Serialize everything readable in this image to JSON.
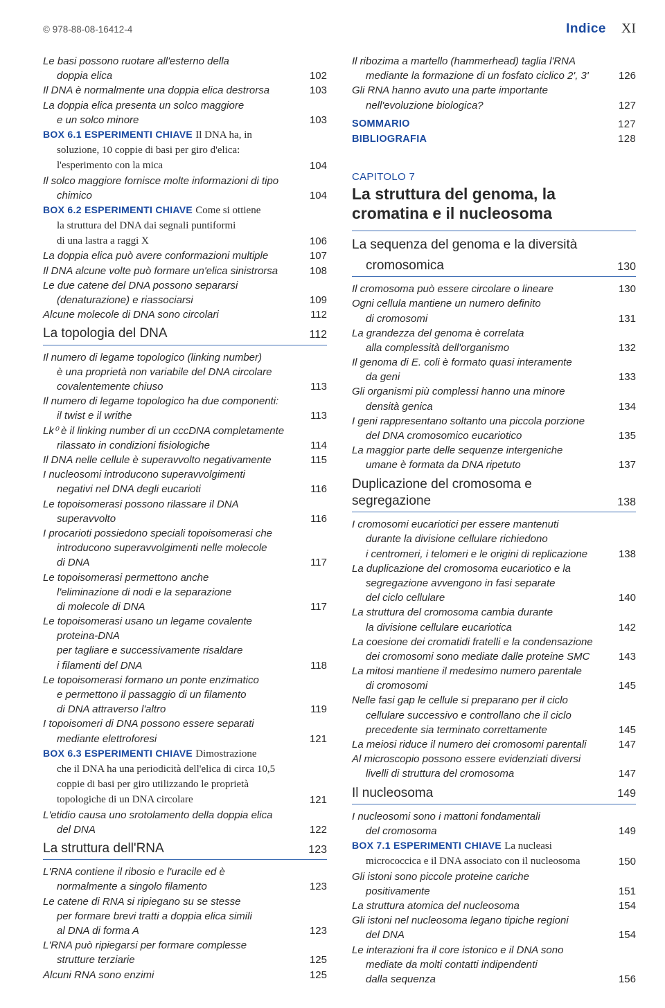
{
  "header": {
    "isbn": "© 978-88-08-16412-4",
    "label": "Indice",
    "pageRoman": "XI"
  },
  "left": {
    "preRows": [
      {
        "t": "Le basi possono ruotare all'esterno della",
        "cont": "doppia elica",
        "p": "102",
        "i": true
      },
      {
        "t": "Il DNA è normalmente una doppia elica destrorsa",
        "p": "103",
        "i": true
      },
      {
        "t": "La doppia elica presenta un solco maggiore",
        "cont": "e un solco minore",
        "p": "103",
        "i": true
      },
      {
        "box": true,
        "label": "BOX 6.1 ESPERIMENTI CHIAVE",
        "t": "Il DNA ha, in",
        "cont": "soluzione, 10 coppie di basi per giro d'elica:",
        "cont2": "l'esperimento con la mica",
        "p": "104"
      },
      {
        "t": "Il solco maggiore fornisce molte informazioni di tipo",
        "cont": "chimico",
        "p": "104",
        "i": true
      },
      {
        "box": true,
        "label": "BOX 6.2 ESPERIMENTI CHIAVE",
        "t": "Come si ottiene",
        "cont": "la struttura del DNA dai segnali puntiformi",
        "cont2": "di una lastra a raggi X",
        "p": "106"
      },
      {
        "t": "La doppia elica può avere conformazioni multiple",
        "p": "107",
        "i": true
      },
      {
        "t": "Il DNA alcune volte può formare un'elica sinistrorsa",
        "p": "108",
        "i": true
      },
      {
        "t": "Le due catene del DNA possono separarsi",
        "cont": "(denaturazione) e riassociarsi",
        "p": "109",
        "i": true
      },
      {
        "t": "Alcune molecole di DNA sono circolari",
        "p": "112",
        "i": true
      }
    ],
    "section1": {
      "title": "La topologia del DNA",
      "page": "112"
    },
    "rows1": [
      {
        "t": "Il numero di legame topologico (linking number)",
        "cont": "è una proprietà non variabile del DNA circolare",
        "cont2": "covalentemente chiuso",
        "p": "113",
        "i": true
      },
      {
        "t": "Il numero di legame topologico ha due componenti:",
        "cont": "il twist e il writhe",
        "p": "113",
        "i": true
      },
      {
        "t": "Lk⁰ è il linking number di un cccDNA completamente",
        "cont": "rilassato in condizioni fisiologiche",
        "p": "114",
        "i": true
      },
      {
        "t": "Il DNA nelle cellule è superavvolto negativamente",
        "p": "115",
        "i": true
      },
      {
        "t": "I nucleosomi introducono superavvolgimenti",
        "cont": "negativi nel DNA degli eucarioti",
        "p": "116",
        "i": true
      },
      {
        "t": "Le topoisomerasi possono rilassare il DNA",
        "cont": "superavvolto",
        "p": "116",
        "i": true
      },
      {
        "t": "I procarioti possiedono speciali topoisomerasi che",
        "cont": "introducono superavvolgimenti nelle molecole",
        "cont2": "di DNA",
        "p": "117",
        "i": true
      },
      {
        "t": "Le topoisomerasi permettono anche",
        "cont": "l'eliminazione di nodi e la separazione",
        "cont2": "di molecole di DNA",
        "p": "117",
        "i": true
      },
      {
        "t": "Le topoisomerasi usano un legame covalente",
        "cont": "proteina-DNA",
        "cont2": "per tagliare e successivamente risaldare",
        "cont3": "i filamenti del DNA",
        "p": "118",
        "i": true
      },
      {
        "t": "Le topoisomerasi formano un ponte enzimatico",
        "cont": "e permettono il passaggio di un filamento",
        "cont2": "di DNA attraverso l'altro",
        "p": "119",
        "i": true
      },
      {
        "t": "I topoisomeri di DNA possono essere separati",
        "cont": "mediante elettroforesi",
        "p": "121",
        "i": true
      },
      {
        "box": true,
        "label": "BOX 6.3 ESPERIMENTI CHIAVE",
        "t": "Dimostrazione",
        "cont": "che il DNA ha una periodicità dell'elica di circa 10,5",
        "cont2": "coppie di basi per giro utilizzando le proprietà",
        "cont3": "topologiche di un DNA circolare",
        "p": "121"
      },
      {
        "t": "L'etidio causa uno srotolamento della doppia elica",
        "cont": "del DNA",
        "p": "122",
        "i": true
      }
    ],
    "section2": {
      "title": "La struttura dell'RNA",
      "page": "123"
    },
    "rows2": [
      {
        "t": "L'RNA contiene il ribosio e l'uracile ed è",
        "cont": "normalmente a singolo filamento",
        "p": "123",
        "i": true
      },
      {
        "t": "Le catene di RNA si ripiegano su se stesse",
        "cont": "per formare brevi tratti a doppia elica simili",
        "cont2": "al DNA di forma A",
        "p": "123",
        "i": true
      },
      {
        "t": "L'RNA può ripiegarsi per formare complesse",
        "cont": "strutture terziarie",
        "p": "125",
        "i": true
      },
      {
        "t": "Alcuni RNA sono enzimi",
        "p": "125",
        "i": true
      }
    ]
  },
  "right": {
    "preRows": [
      {
        "t": "Il ribozima a martello (hammerhead) taglia l'RNA",
        "cont": "mediante la formazione di un fosfato ciclico 2', 3'",
        "p": "126",
        "i": true
      },
      {
        "t": "Gli RNA hanno avuto una parte importante",
        "cont": "nell'evoluzione biologica?",
        "p": "127",
        "i": true
      }
    ],
    "end": [
      {
        "t": "SOMMARIO",
        "p": "127"
      },
      {
        "t": "BIBLIOGRAFIA",
        "p": "128"
      }
    ],
    "chapter": {
      "label": "CAPITOLO 7",
      "title": "La struttura del genoma, la cromatina e il nucleosoma"
    },
    "section1": {
      "title": "La sequenza del genoma e la diversità",
      "titleCont": "cromosomica",
      "page": "130"
    },
    "rows1": [
      {
        "t": "Il cromosoma può essere circolare o lineare",
        "p": "130",
        "i": true
      },
      {
        "t": "Ogni cellula mantiene un numero definito",
        "cont": "di cromosomi",
        "p": "131",
        "i": true
      },
      {
        "t": "La grandezza del genoma è correlata",
        "cont": "alla complessità dell'organismo",
        "p": "132",
        "i": true
      },
      {
        "t": "Il genoma di E. coli è formato quasi interamente",
        "cont": "da geni",
        "p": "133",
        "i": true
      },
      {
        "t": "Gli organismi più complessi hanno una minore",
        "cont": "densità genica",
        "p": "134",
        "i": true
      },
      {
        "t": "I geni rappresentano soltanto una piccola porzione",
        "cont": "del DNA cromosomico eucariotico",
        "p": "135",
        "i": true
      },
      {
        "t": "La maggior parte delle sequenze intergeniche",
        "cont": "umane è formata da DNA ripetuto",
        "p": "137",
        "i": true
      }
    ],
    "section2": {
      "title": "Duplicazione del cromosoma e segregazione",
      "page": "138"
    },
    "rows2": [
      {
        "t": "I cromosomi eucariotici per essere mantenuti",
        "cont": "durante la divisione cellulare richiedono",
        "cont2": "i centromeri, i telomeri e le origini di replicazione",
        "p": "138",
        "i": true
      },
      {
        "t": "La duplicazione del cromosoma eucariotico e la",
        "cont": "segregazione avvengono in fasi separate",
        "cont2": "del ciclo cellulare",
        "p": "140",
        "i": true
      },
      {
        "t": "La struttura del cromosoma cambia durante",
        "cont": "la divisione cellulare eucariotica",
        "p": "142",
        "i": true
      },
      {
        "t": "La coesione dei cromatidi fratelli e la condensazione",
        "cont": "dei cromosomi sono mediate dalle proteine SMC",
        "p": "143",
        "i": true
      },
      {
        "t": "La mitosi mantiene il medesimo numero parentale",
        "cont": "di cromosomi",
        "p": "145",
        "i": true
      },
      {
        "t": "Nelle fasi gap le cellule si preparano per il ciclo",
        "cont": "cellulare successivo e controllano che il ciclo",
        "cont2": "precedente sia terminato correttamente",
        "p": "145",
        "i": true
      },
      {
        "t": "La meiosi riduce il numero dei cromosomi parentali",
        "p": "147",
        "i": true
      },
      {
        "t": "Al microscopio possono essere evidenziati diversi",
        "cont": "livelli di struttura del cromosoma",
        "p": "147",
        "i": true
      }
    ],
    "section3": {
      "title": "Il nucleosoma",
      "page": "149"
    },
    "rows3": [
      {
        "t": "I nucleosomi sono i mattoni fondamentali",
        "cont": "del cromosoma",
        "p": "149",
        "i": true
      },
      {
        "box": true,
        "label": "BOX 7.1 ESPERIMENTI CHIAVE",
        "t": "La nucleasi",
        "cont": "micrococcica e il DNA associato con il nucleosoma",
        "p": "150"
      },
      {
        "t": "Gli istoni sono piccole proteine cariche",
        "cont": "positivamente",
        "p": "151",
        "i": true
      },
      {
        "t": "La struttura atomica del nucleosoma",
        "p": "154",
        "i": true
      },
      {
        "t": "Gli istoni nel nucleosoma legano tipiche regioni",
        "cont": "del DNA",
        "p": "154",
        "i": true
      },
      {
        "t": "Le interazioni fra il core istonico e il DNA sono",
        "cont": "mediate da molti contatti indipendenti",
        "cont2": "dalla sequenza",
        "p": "156",
        "i": true
      }
    ]
  }
}
